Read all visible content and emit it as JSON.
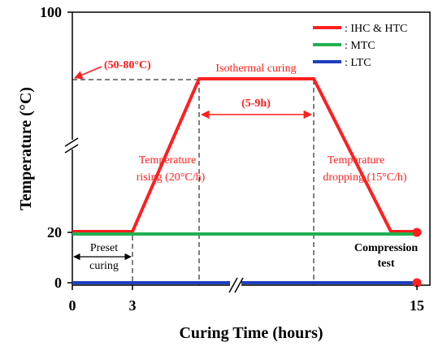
{
  "chart_data": {
    "type": "line",
    "xlabel": "Curing Time (hours)",
    "ylabel": "Temperature (°C)",
    "xlim": [
      0,
      15
    ],
    "ylim": [
      0,
      100
    ],
    "x_ticks": [
      "0",
      "3",
      "15"
    ],
    "y_ticks": [
      "0",
      "20",
      "100"
    ],
    "grid": false,
    "axis_breaks": [
      "y-axis between 20 and 100",
      "x-axis between 3 and 15"
    ],
    "legend_position": "top-right",
    "series": [
      {
        "name": ": IHC & HTC",
        "color": "#ff1f1f",
        "points": [
          [
            0,
            20
          ],
          [
            3,
            20
          ],
          [
            5.5,
            80
          ],
          [
            10.5,
            80
          ],
          [
            13.5,
            20
          ],
          [
            15,
            20
          ]
        ]
      },
      {
        "name": ": MTC",
        "color": "#22b050",
        "points": [
          [
            0,
            20
          ],
          [
            15,
            20
          ]
        ]
      },
      {
        "name": ": LTC",
        "color": "#1e3fbf",
        "points": [
          [
            0,
            0
          ],
          [
            15,
            0
          ]
        ]
      }
    ],
    "annotations": {
      "temp_range": "(50-80°C)",
      "isothermal": "Isothermal curing",
      "duration": "(5-9h)",
      "rising_line1": "Temperature",
      "rising_line2": "rising (20°C/h)",
      "dropping_line1": "Temperature",
      "dropping_line2": "dropping (15°C/h)",
      "preset_line1": "Preset",
      "preset_line2": "curing",
      "compression_line1": "Compression",
      "compression_line2": "test"
    }
  }
}
